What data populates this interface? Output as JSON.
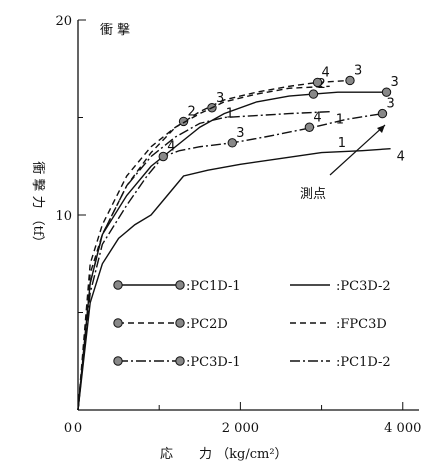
{
  "chart_data": {
    "type": "line",
    "title": "衝 撃",
    "xlabel": "応　　力 （kg/cm²）",
    "ylabel": "衝 撃 力 （tf）",
    "xlim": [
      0,
      4200
    ],
    "ylim": [
      0,
      20
    ],
    "xticks": [
      0,
      2000,
      4000
    ],
    "xtick_labels": [
      "0",
      "2 000",
      "4 000"
    ],
    "yticks": [
      10,
      20
    ],
    "ytick_labels": [
      "10",
      "20"
    ],
    "annotation": "測点",
    "legend_position": "lower-center",
    "series": [
      {
        "name": "PC1D-1",
        "style": "solid-marker",
        "x": [
          0,
          150,
          300,
          600,
          900,
          1200,
          1500,
          1800,
          2200,
          2600,
          2900,
          3200,
          3600,
          3800
        ],
        "y": [
          0,
          6.5,
          9.0,
          11.0,
          12.5,
          13.5,
          14.5,
          15.2,
          15.8,
          16.1,
          16.2,
          16.3,
          16.3,
          16.3
        ],
        "markers": [
          {
            "x": 2900,
            "y": 16.2,
            "label": "2"
          },
          {
            "x": 3800,
            "y": 16.3,
            "label": "3"
          }
        ]
      },
      {
        "name": "PC2D",
        "style": "dashed-marker",
        "x": [
          0,
          150,
          300,
          600,
          900,
          1200,
          1500,
          1800,
          2200,
          2600,
          2950,
          3350
        ],
        "y": [
          0,
          7.0,
          9.0,
          11.5,
          13.2,
          14.5,
          15.3,
          15.9,
          16.3,
          16.6,
          16.8,
          16.9
        ],
        "markers": [
          {
            "x": 1300,
            "y": 14.8,
            "label": "2"
          },
          {
            "x": 1650,
            "y": 15.5,
            "label": "3"
          },
          {
            "x": 2950,
            "y": 16.8,
            "label": "4"
          },
          {
            "x": 3350,
            "y": 16.9,
            "label": "3"
          }
        ]
      },
      {
        "name": "PC3D-1",
        "style": "dashdot-marker",
        "x": [
          0,
          150,
          300,
          600,
          850,
          1050,
          1250,
          1500,
          1900,
          2300,
          2900,
          3300,
          3750
        ],
        "y": [
          0,
          6.0,
          8.5,
          10.5,
          12.0,
          13.0,
          13.3,
          13.5,
          13.7,
          14.0,
          14.5,
          14.9,
          15.2
        ],
        "markers": [
          {
            "x": 1050,
            "y": 13.0,
            "label": "4"
          },
          {
            "x": 1900,
            "y": 13.7,
            "label": "3"
          },
          {
            "x": 2850,
            "y": 14.5,
            "label": "4"
          },
          {
            "x": 3750,
            "y": 15.2,
            "label": "3"
          }
        ]
      },
      {
        "name": "PC3D-2",
        "style": "solid",
        "x": [
          0,
          150,
          300,
          500,
          700,
          900,
          1100,
          1300,
          1600,
          2000,
          2500,
          3000,
          3500,
          3850
        ],
        "y": [
          0,
          5.5,
          7.5,
          8.8,
          9.5,
          10.0,
          11.0,
          12.0,
          12.3,
          12.6,
          12.9,
          13.2,
          13.3,
          13.4
        ],
        "markers": [],
        "end_label": "4"
      },
      {
        "name": "FPC3D",
        "style": "dashed",
        "x": [
          0,
          150,
          300,
          600,
          900,
          1200,
          1500,
          1800,
          2200,
          2600,
          3100
        ],
        "y": [
          0,
          7.5,
          9.5,
          12.0,
          13.5,
          14.5,
          15.2,
          15.8,
          16.2,
          16.5,
          16.6
        ],
        "markers": []
      },
      {
        "name": "PC1D-2",
        "style": "dashdot",
        "x": [
          0,
          150,
          300,
          600,
          900,
          1200,
          1500,
          1800,
          2200,
          2600,
          3100
        ],
        "y": [
          0,
          6.5,
          9.0,
          11.5,
          13.0,
          14.0,
          14.7,
          15.0,
          15.1,
          15.2,
          15.3
        ],
        "markers": [],
        "end_label": "1"
      }
    ],
    "extra_labels": [
      {
        "x": 1820,
        "y": 15.0,
        "text": "1"
      },
      {
        "x": 3200,
        "y": 13.5,
        "text": "1"
      }
    ]
  }
}
